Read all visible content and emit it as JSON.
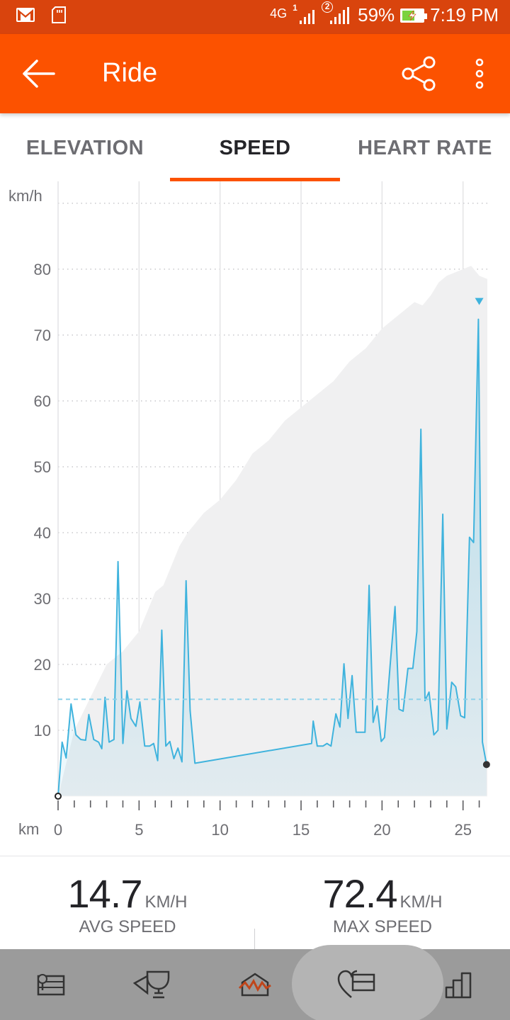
{
  "status_bar": {
    "network": "4G",
    "sim1": "1",
    "sim2": "2",
    "battery_percent": "59%",
    "battery_level": 0.59,
    "time": "7:19 PM",
    "icons": [
      "gmail-icon",
      "sd-card-icon",
      "signal-icon",
      "battery-charging-icon"
    ]
  },
  "app_bar": {
    "title": "Ride",
    "icons": [
      "back-arrow-icon",
      "share-icon",
      "overflow-menu-icon"
    ]
  },
  "tabs": [
    {
      "label": "ELEVATION",
      "active": false
    },
    {
      "label": "SPEED",
      "active": true
    },
    {
      "label": "HEART RATE",
      "active": false
    }
  ],
  "chart_data": {
    "type": "line",
    "y_unit_label": "km/h",
    "x_unit_label": "km",
    "y_ticks": [
      10,
      20,
      30,
      40,
      50,
      60,
      70,
      80
    ],
    "x_ticks": [
      0,
      5,
      10,
      15,
      20,
      25
    ],
    "x_minor_step": 1,
    "xlim": [
      0,
      26.5
    ],
    "ylim": [
      0,
      90
    ],
    "grid": true,
    "average_line": 14.7,
    "max_marker": {
      "x": 26,
      "y": 72.4
    },
    "colors": {
      "speed": "#3fb3dd",
      "elevation_fill": "#f0f0f1",
      "average": "#8fd2ea",
      "grid": "#c8c8cc"
    },
    "series": [
      {
        "role": "speed",
        "points": [
          [
            0,
            0
          ],
          [
            0.25,
            8.2
          ],
          [
            0.5,
            5.8
          ],
          [
            0.8,
            14
          ],
          [
            1.1,
            9.3
          ],
          [
            1.4,
            8.6
          ],
          [
            1.7,
            8.5
          ],
          [
            1.9,
            12.4
          ],
          [
            2.2,
            8.6
          ],
          [
            2.5,
            8.2
          ],
          [
            2.7,
            7.2
          ],
          [
            2.9,
            15
          ],
          [
            3.15,
            8.2
          ],
          [
            3.45,
            8.6
          ],
          [
            3.7,
            35.6
          ],
          [
            4.0,
            8.0
          ],
          [
            4.25,
            16
          ],
          [
            4.5,
            11.8
          ],
          [
            4.8,
            10.6
          ],
          [
            5.05,
            14.3
          ],
          [
            5.35,
            7.6
          ],
          [
            5.65,
            7.6
          ],
          [
            5.9,
            8
          ],
          [
            6.15,
            5.4
          ],
          [
            6.4,
            25.2
          ],
          [
            6.65,
            7.6
          ],
          [
            6.9,
            8.3
          ],
          [
            7.15,
            5.7
          ],
          [
            7.4,
            7.3
          ],
          [
            7.65,
            5.2
          ],
          [
            7.9,
            32.7
          ],
          [
            8.15,
            13
          ],
          [
            8.45,
            5
          ],
          [
            15.65,
            8
          ],
          [
            15.75,
            11.4
          ],
          [
            16.0,
            7.6
          ],
          [
            16.35,
            7.6
          ],
          [
            16.6,
            8
          ],
          [
            16.85,
            7.6
          ],
          [
            17.15,
            12.5
          ],
          [
            17.4,
            10.5
          ],
          [
            17.65,
            20.1
          ],
          [
            17.9,
            11.8
          ],
          [
            18.15,
            18.3
          ],
          [
            18.4,
            9.7
          ],
          [
            18.65,
            9.7
          ],
          [
            18.95,
            9.7
          ],
          [
            19.2,
            32
          ],
          [
            19.45,
            11.2
          ],
          [
            19.7,
            13.7
          ],
          [
            19.95,
            8.3
          ],
          [
            20.15,
            8.9
          ],
          [
            20.5,
            19.9
          ],
          [
            20.8,
            28.8
          ],
          [
            21.05,
            13.2
          ],
          [
            21.3,
            12.9
          ],
          [
            21.6,
            19.4
          ],
          [
            21.9,
            19.4
          ],
          [
            22.15,
            25
          ],
          [
            22.4,
            55.7
          ],
          [
            22.65,
            14.5
          ],
          [
            22.9,
            15.8
          ],
          [
            23.2,
            9.3
          ],
          [
            23.45,
            10
          ],
          [
            23.75,
            42.8
          ],
          [
            24.0,
            10.2
          ],
          [
            24.3,
            17.3
          ],
          [
            24.55,
            16.6
          ],
          [
            24.85,
            12.2
          ],
          [
            25.1,
            11.9
          ],
          [
            25.4,
            39.3
          ],
          [
            25.65,
            38.5
          ],
          [
            25.95,
            72.4
          ],
          [
            26.2,
            8.2
          ],
          [
            26.45,
            4.8
          ]
        ]
      },
      {
        "role": "elevation",
        "points": [
          [
            0,
            0
          ],
          [
            1.0,
            10
          ],
          [
            2.0,
            15
          ],
          [
            3.0,
            20
          ],
          [
            4.0,
            22
          ],
          [
            5.0,
            25
          ],
          [
            5.5,
            28
          ],
          [
            6.0,
            31
          ],
          [
            6.5,
            32
          ],
          [
            7.0,
            35
          ],
          [
            7.5,
            38
          ],
          [
            8.0,
            40
          ],
          [
            9.0,
            43
          ],
          [
            10.0,
            45
          ],
          [
            11.0,
            48
          ],
          [
            12.0,
            52
          ],
          [
            13.0,
            54
          ],
          [
            14.0,
            57
          ],
          [
            15.0,
            59
          ],
          [
            16.0,
            61
          ],
          [
            17.0,
            63
          ],
          [
            18.0,
            66
          ],
          [
            19.0,
            68
          ],
          [
            20.0,
            71
          ],
          [
            21.0,
            73
          ],
          [
            22.0,
            75
          ],
          [
            22.5,
            74.5
          ],
          [
            23.0,
            76
          ],
          [
            23.5,
            78
          ],
          [
            24.0,
            79
          ],
          [
            25.0,
            80
          ],
          [
            25.5,
            80.5
          ],
          [
            26.0,
            79
          ],
          [
            26.5,
            78.5
          ]
        ]
      }
    ]
  },
  "stats": {
    "avg": {
      "value": "14.7",
      "unit": "KM/H",
      "label": "AVG SPEED"
    },
    "max": {
      "value": "72.4",
      "unit": "KM/H",
      "label": "MAX SPEED"
    }
  },
  "bottom_nav": {
    "items": [
      "feed-icon",
      "trophy-icon",
      "activity-map-icon",
      "heart-rate-icon",
      "stats-icon"
    ],
    "active_index": 3
  }
}
